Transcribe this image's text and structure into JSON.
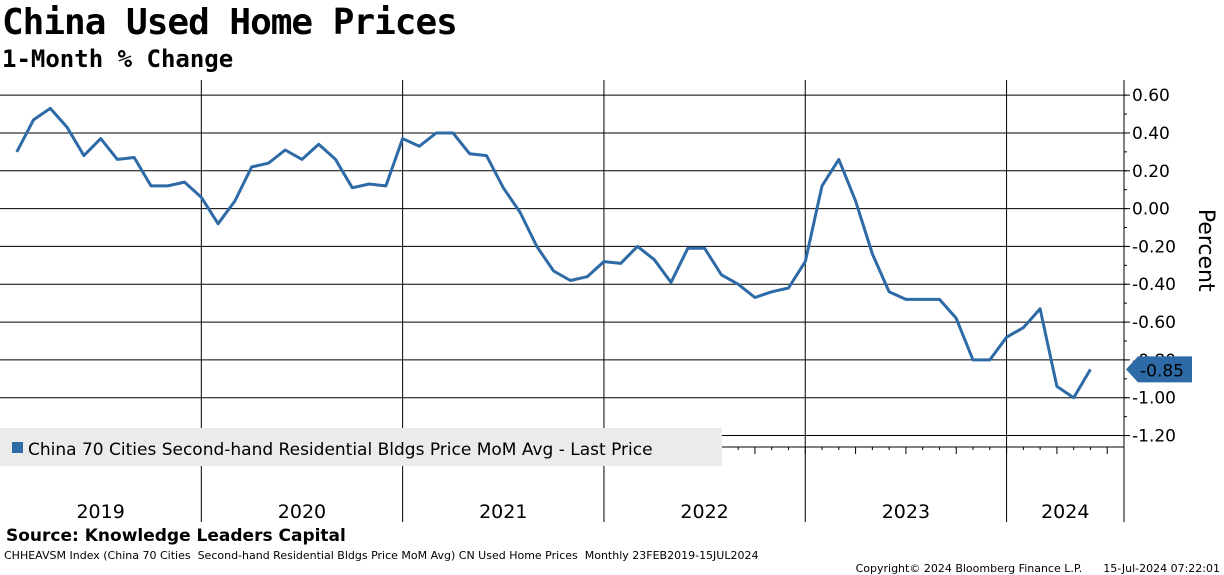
{
  "header": {
    "title": "China Used Home Prices",
    "subtitle": "1-Month % Change"
  },
  "source": "Source: Knowledge Leaders Capital",
  "footer": {
    "left": "CHHEAVSM Index (China 70 Cities  Second-hand Residential Bldgs Price MoM Avg) CN Used Home Prices  Monthly 23FEB2019-15JUL2024",
    "copyright": "Copyright© 2024 Bloomberg Finance L.P.",
    "timestamp": "15-Jul-2024 07:22:01"
  },
  "colors": {
    "line": "#2e6aa6",
    "grid": "#000000",
    "legend_bg": "#ebebeb"
  },
  "chart_data": {
    "type": "line",
    "title": "China Used Home Prices",
    "subtitle": "1-Month % Change",
    "ylabel": "Percent",
    "ylim": [
      -1.25,
      0.68
    ],
    "yticks": [
      0.6,
      0.4,
      0.2,
      0.0,
      -0.2,
      -0.4,
      -0.6,
      -0.8,
      -1.0,
      -1.2
    ],
    "ytick_labels": [
      "0.60",
      "0.40",
      "0.20",
      "0.00",
      "-0.20",
      "-0.40",
      "-0.60",
      "-0.80",
      "-1.00",
      "-1.20"
    ],
    "xlim": [
      "2019-01",
      "2024-08"
    ],
    "year_labels": [
      "2019",
      "2020",
      "2021",
      "2022",
      "2023",
      "2024"
    ],
    "grid": true,
    "legend_position": "bottom-left",
    "last_value_label": "-0.85",
    "series": [
      {
        "name": "China 70 Cities Second-hand Residential Bldgs Price MoM Avg - Last Price",
        "x": [
          "2019-02",
          "2019-03",
          "2019-04",
          "2019-05",
          "2019-06",
          "2019-07",
          "2019-08",
          "2019-09",
          "2019-10",
          "2019-11",
          "2019-12",
          "2020-01",
          "2020-02",
          "2020-03",
          "2020-04",
          "2020-05",
          "2020-06",
          "2020-07",
          "2020-08",
          "2020-09",
          "2020-10",
          "2020-11",
          "2020-12",
          "2021-01",
          "2021-02",
          "2021-03",
          "2021-04",
          "2021-05",
          "2021-06",
          "2021-07",
          "2021-08",
          "2021-09",
          "2021-10",
          "2021-11",
          "2021-12",
          "2022-01",
          "2022-02",
          "2022-03",
          "2022-04",
          "2022-05",
          "2022-06",
          "2022-07",
          "2022-08",
          "2022-09",
          "2022-10",
          "2022-11",
          "2022-12",
          "2023-01",
          "2023-02",
          "2023-03",
          "2023-04",
          "2023-05",
          "2023-06",
          "2023-07",
          "2023-08",
          "2023-09",
          "2023-10",
          "2023-11",
          "2023-12",
          "2024-01",
          "2024-02",
          "2024-03",
          "2024-04",
          "2024-05",
          "2024-06"
        ],
        "values": [
          0.3,
          0.47,
          0.53,
          0.43,
          0.28,
          0.37,
          0.26,
          0.27,
          0.12,
          0.12,
          0.14,
          0.06,
          -0.08,
          0.04,
          0.22,
          0.24,
          0.31,
          0.26,
          0.34,
          0.26,
          0.11,
          0.13,
          0.12,
          0.37,
          0.33,
          0.4,
          0.4,
          0.29,
          0.28,
          0.11,
          -0.02,
          -0.2,
          -0.33,
          -0.38,
          -0.36,
          -0.28,
          -0.29,
          -0.2,
          -0.27,
          -0.39,
          -0.21,
          -0.21,
          -0.35,
          -0.4,
          -0.47,
          -0.44,
          -0.42,
          -0.28,
          0.12,
          0.26,
          0.04,
          -0.24,
          -0.44,
          -0.48,
          -0.48,
          -0.48,
          -0.58,
          -0.8,
          -0.8,
          -0.68,
          -0.63,
          -0.53,
          -0.94,
          -1.0,
          -0.85
        ]
      }
    ]
  }
}
